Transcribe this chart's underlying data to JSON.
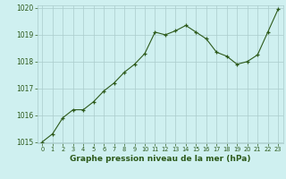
{
  "x": [
    0,
    1,
    2,
    3,
    4,
    5,
    6,
    7,
    8,
    9,
    10,
    11,
    12,
    13,
    14,
    15,
    16,
    17,
    18,
    19,
    20,
    21,
    22,
    23
  ],
  "y": [
    1015.0,
    1015.3,
    1015.9,
    1016.2,
    1016.2,
    1016.5,
    1016.9,
    1017.2,
    1017.6,
    1017.9,
    1018.3,
    1019.1,
    1019.0,
    1019.15,
    1019.35,
    1019.1,
    1018.85,
    1018.35,
    1018.2,
    1017.9,
    1018.0,
    1018.25,
    1019.1,
    1019.95
  ],
  "line_color": "#2d5a1b",
  "marker": "+",
  "marker_color": "#2d5a1b",
  "bg_color": "#cff0f0",
  "grid_color": "#aacccc",
  "xlabel": "Graphe pression niveau de la mer (hPa)",
  "xlabel_color": "#2d5a1b",
  "tick_color": "#2d5a1b",
  "label_bg": "#a8d8d8",
  "ylim": [
    1015.0,
    1020.0
  ],
  "xlim": [
    -0.5,
    23.5
  ],
  "yticks": [
    1015,
    1016,
    1017,
    1018,
    1019,
    1020
  ],
  "xticks": [
    0,
    1,
    2,
    3,
    4,
    5,
    6,
    7,
    8,
    9,
    10,
    11,
    12,
    13,
    14,
    15,
    16,
    17,
    18,
    19,
    20,
    21,
    22,
    23
  ],
  "ylabel_fontsize": 5.5,
  "xlabel_fontsize": 6.5,
  "xtick_fontsize": 4.8,
  "ytick_fontsize": 5.5
}
